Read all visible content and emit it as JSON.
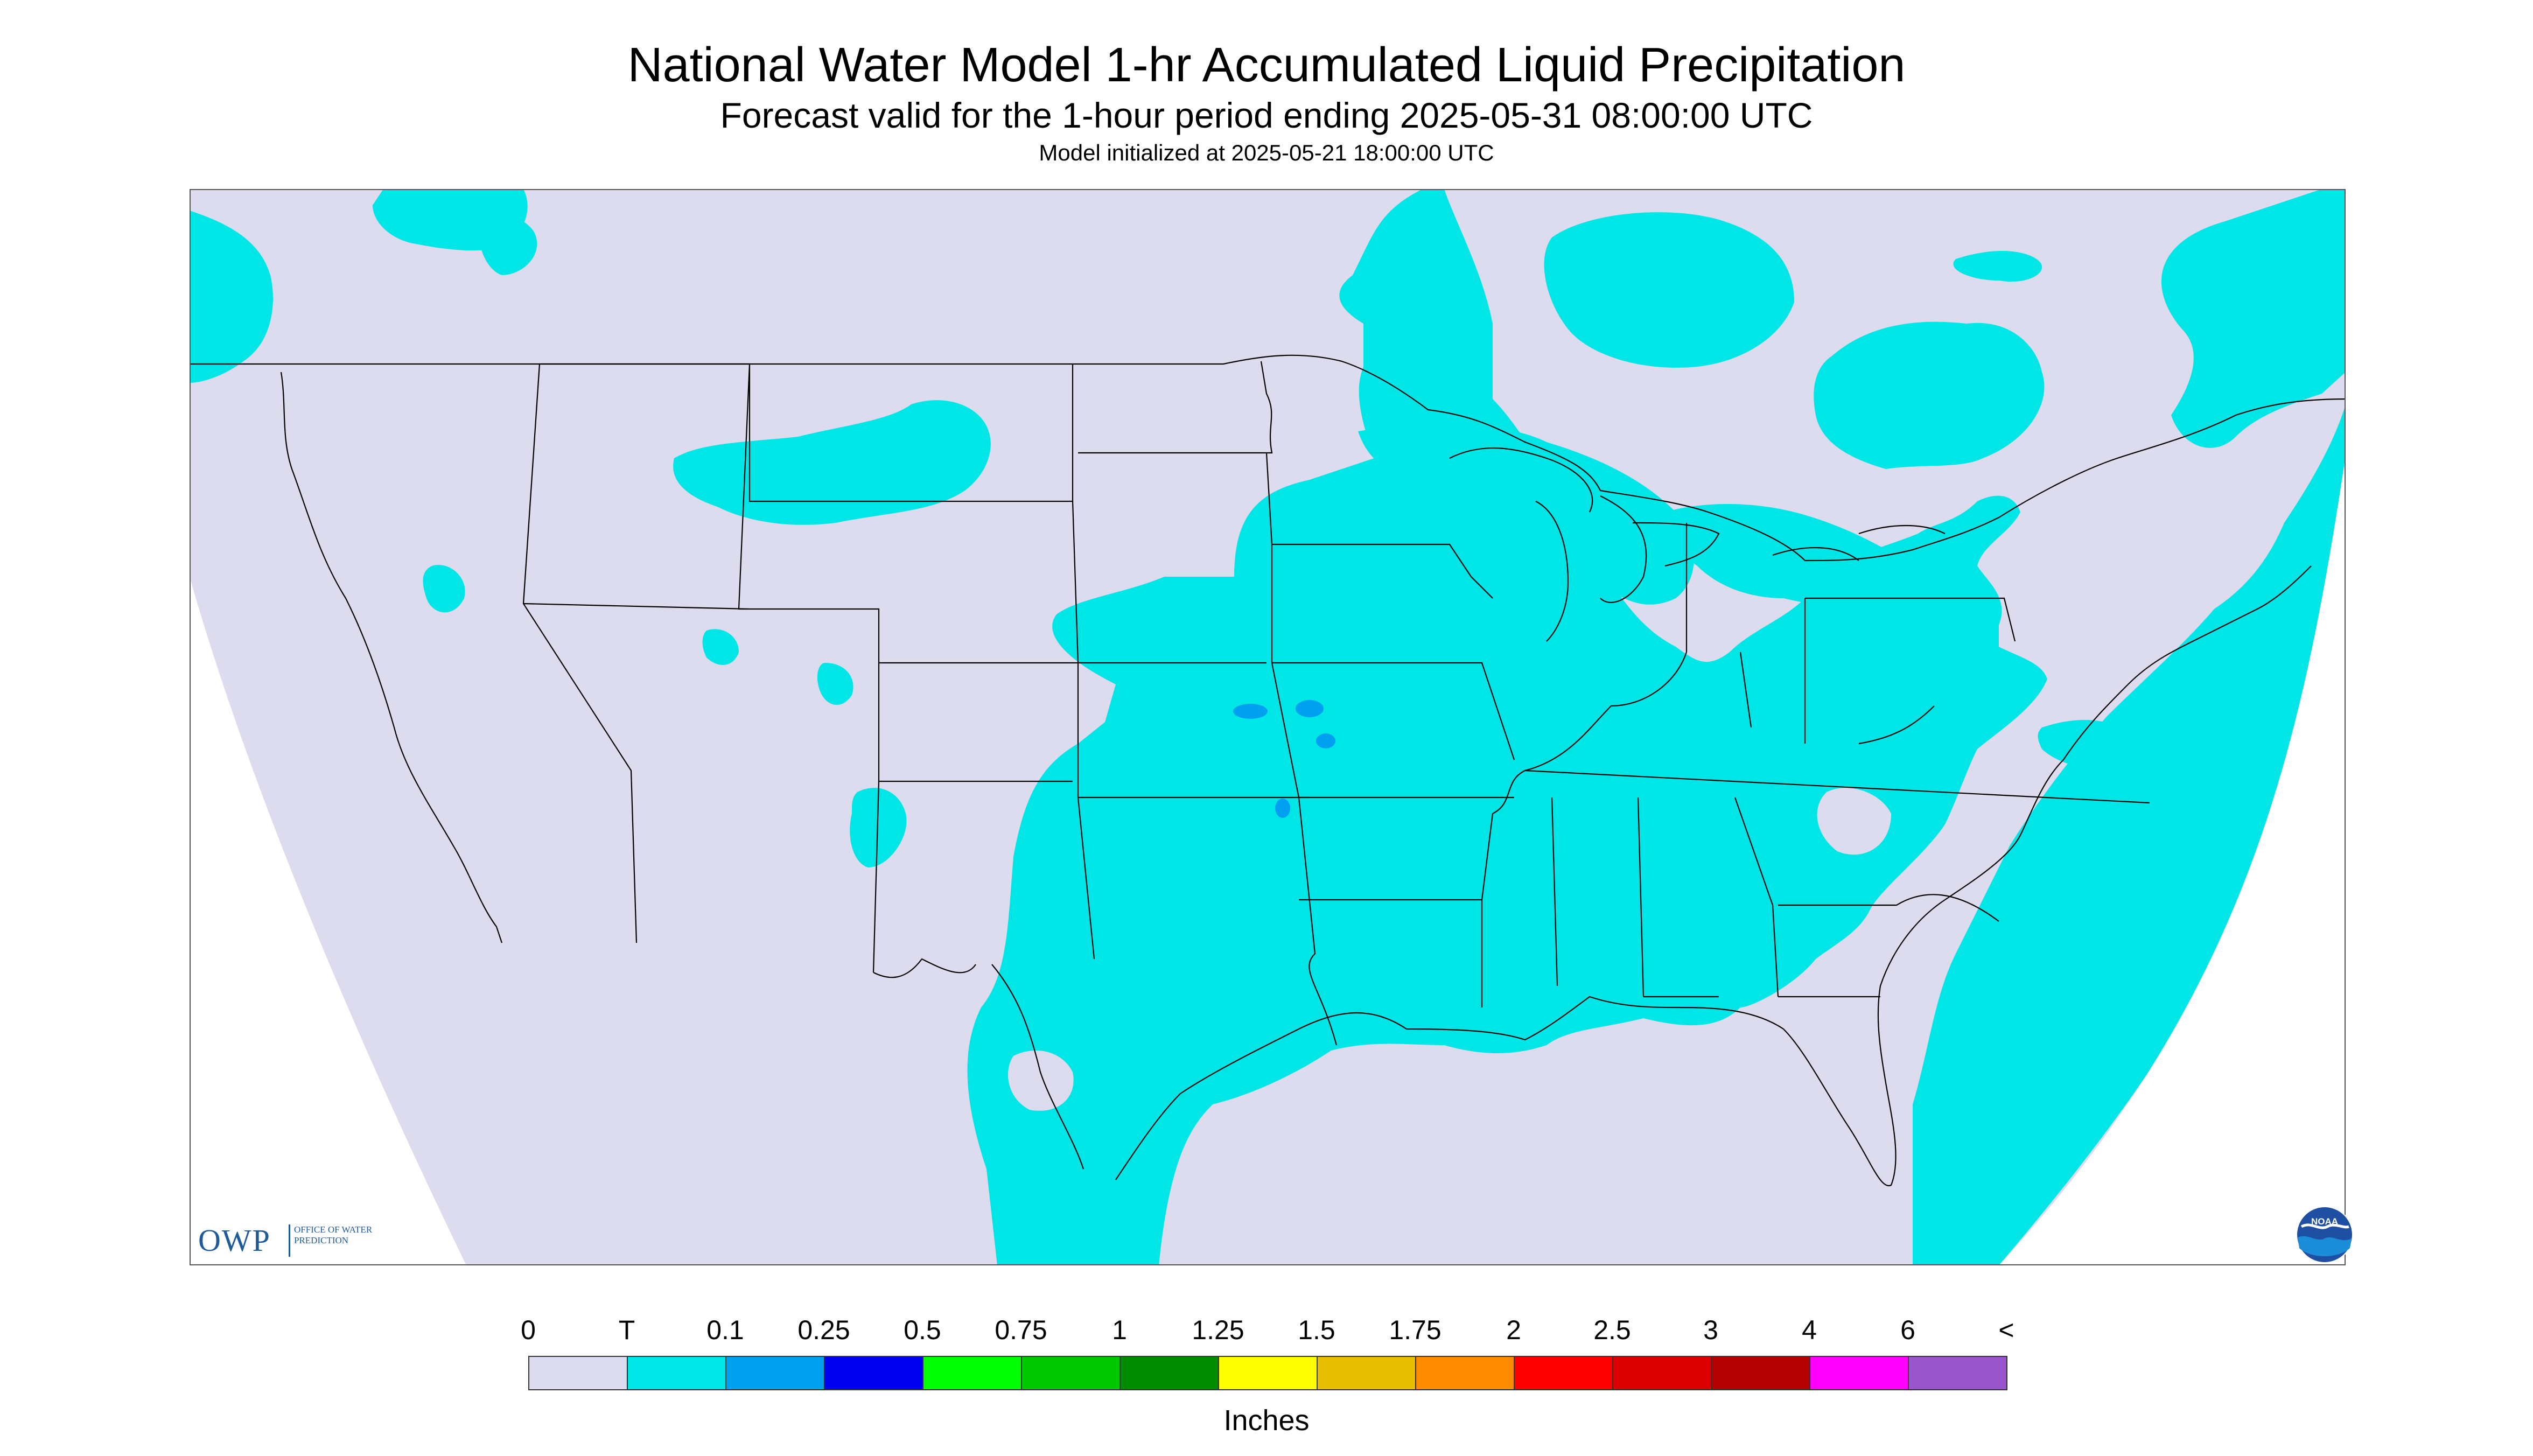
{
  "header": {
    "title": "National Water Model 1-hr Accumulated Liquid Precipitation",
    "subtitle": "Forecast valid for the 1-hour period ending 2025-05-31 08:00:00 UTC",
    "init": "Model initialized at 2025-05-21 18:00:00 UTC"
  },
  "legend": {
    "units": "Inches",
    "ticks": [
      "0",
      "T",
      "0.1",
      "0.25",
      "0.5",
      "0.75",
      "1",
      "1.25",
      "1.5",
      "1.75",
      "2",
      "2.5",
      "3",
      "4",
      "6",
      "<"
    ],
    "colors": [
      "#dcdcee",
      "#00e6e6",
      "#00a0f0",
      "#0000f0",
      "#00ff00",
      "#00c800",
      "#008c00",
      "#ffff00",
      "#e6c000",
      "#ff8c00",
      "#ff0000",
      "#dc0000",
      "#b40000",
      "#ff00ff",
      "#9955cc"
    ]
  },
  "logos": {
    "owp_letters": "OWP",
    "owp_name": "Office of Water Prediction",
    "noaa_text": "NOAA"
  },
  "map": {
    "background_color": "#dcdcee",
    "precip_color": "#00e6e6",
    "heavier_precip_color": "#00a0f0",
    "outline_color": "#000000"
  }
}
